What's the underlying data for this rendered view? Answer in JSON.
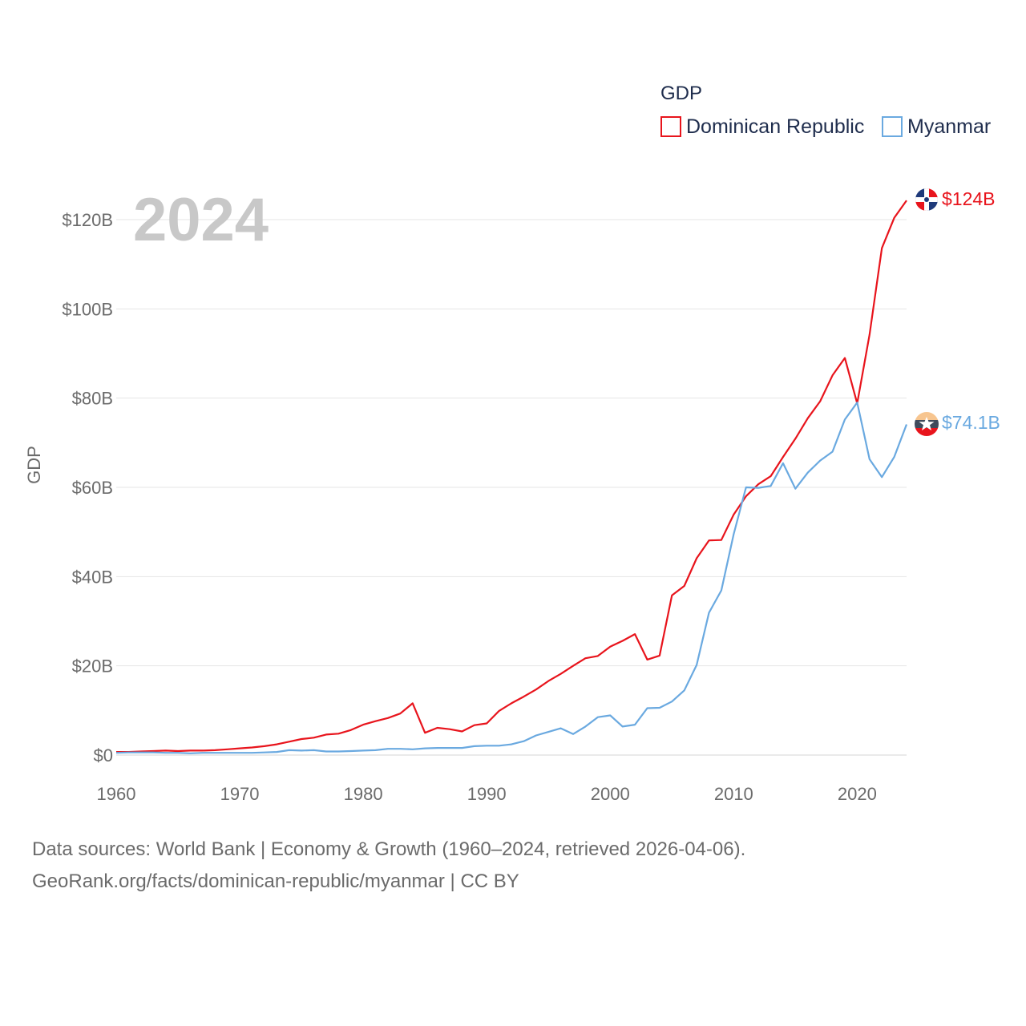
{
  "chart_data": {
    "type": "line",
    "title": "2024",
    "ylabel": "GDP",
    "xlabel": "",
    "legend_title": "GDP",
    "legend_position": "top-right",
    "xlim": [
      1960,
      2024
    ],
    "ylim": [
      0,
      120
    ],
    "x_ticks": [
      1960,
      1970,
      1980,
      1990,
      2000,
      2010,
      2020
    ],
    "x_tick_labels": [
      "1960",
      "1970",
      "1980",
      "1990",
      "2000",
      "2010",
      "2020"
    ],
    "y_ticks": [
      0,
      20,
      40,
      60,
      80,
      100,
      120
    ],
    "y_tick_labels": [
      "$0",
      "$20B",
      "$40B",
      "$60B",
      "$80B",
      "$100B",
      "$120B"
    ],
    "units": "billion USD",
    "x": [
      1960,
      1961,
      1962,
      1963,
      1964,
      1965,
      1966,
      1967,
      1968,
      1969,
      1970,
      1971,
      1972,
      1973,
      1974,
      1975,
      1976,
      1977,
      1978,
      1979,
      1980,
      1981,
      1982,
      1983,
      1984,
      1985,
      1986,
      1987,
      1988,
      1989,
      1990,
      1991,
      1992,
      1993,
      1994,
      1995,
      1996,
      1997,
      1998,
      1999,
      2000,
      2001,
      2002,
      2003,
      2004,
      2005,
      2006,
      2007,
      2008,
      2009,
      2010,
      2011,
      2012,
      2013,
      2014,
      2015,
      2016,
      2017,
      2018,
      2019,
      2020,
      2021,
      2022,
      2023,
      2024
    ],
    "series": [
      {
        "name": "Dominican Republic",
        "color": "#e8141c",
        "end_label": "$124B",
        "values": [
          0.7,
          0.7,
          0.8,
          0.9,
          1.0,
          0.9,
          1.0,
          1.0,
          1.1,
          1.3,
          1.5,
          1.7,
          2.0,
          2.4,
          3.0,
          3.6,
          3.9,
          4.6,
          4.8,
          5.6,
          6.8,
          7.6,
          8.3,
          9.3,
          11.6,
          5.0,
          6.1,
          5.8,
          5.3,
          6.7,
          7.1,
          9.9,
          11.6,
          13.1,
          14.7,
          16.6,
          18.2,
          20.0,
          21.7,
          22.2,
          24.3,
          25.6,
          27.1,
          21.4,
          22.3,
          35.8,
          37.9,
          44.1,
          48.1,
          48.2,
          53.9,
          58.0,
          60.7,
          62.5,
          66.8,
          70.9,
          75.5,
          79.3,
          85.1,
          89.0,
          78.8,
          94.2,
          113.6,
          120.4,
          124.3
        ]
      },
      {
        "name": "Myanmar",
        "color": "#6aa9e0",
        "end_label": "$74.1B",
        "values": [
          0.5,
          0.6,
          0.6,
          0.6,
          0.5,
          0.5,
          0.4,
          0.5,
          0.5,
          0.5,
          0.5,
          0.5,
          0.6,
          0.7,
          1.1,
          1.0,
          1.1,
          0.8,
          0.8,
          0.9,
          1.0,
          1.1,
          1.4,
          1.4,
          1.3,
          1.5,
          1.6,
          1.6,
          1.6,
          2.0,
          2.1,
          2.1,
          2.4,
          3.1,
          4.4,
          5.2,
          6.0,
          4.7,
          6.4,
          8.5,
          8.9,
          6.4,
          6.8,
          10.5,
          10.6,
          12.0,
          14.5,
          20.2,
          31.9,
          36.9,
          49.5,
          60.0,
          59.9,
          60.3,
          65.4,
          59.7,
          63.3,
          66.0,
          68.0,
          75.2,
          79.0,
          66.3,
          62.3,
          66.8,
          74.1
        ]
      }
    ]
  },
  "footer": {
    "line1": "Data sources: World Bank | Economy & Growth (1960–2024, retrieved 2026-04-06).",
    "line2": "GeoRank.org/facts/dominican-republic/myanmar | CC BY"
  }
}
